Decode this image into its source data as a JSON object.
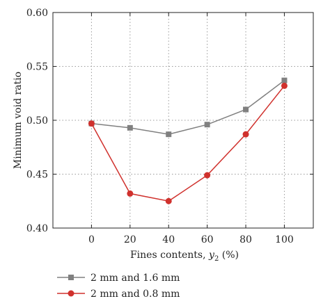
{
  "chart_data": {
    "type": "line",
    "title": "",
    "xlabel": "Fines contents, ",
    "xlabel_var": "y",
    "xlabel_sub": "2",
    "xlabel_unit": " (%)",
    "ylabel": "Minimum void ratio",
    "x": [
      0,
      20,
      40,
      60,
      80,
      100
    ],
    "xlim": [
      -20,
      115
    ],
    "ylim": [
      0.4,
      0.6
    ],
    "xticks": [
      "0",
      "20",
      "40",
      "60",
      "80",
      "100"
    ],
    "yticks": [
      "0.40",
      "0.45",
      "0.50",
      "0.55",
      "0.60"
    ],
    "grid": true,
    "legend_position": "below",
    "series": [
      {
        "name": "2 mm and 1.6 mm",
        "marker": "square",
        "color": "#808080",
        "values": [
          0.497,
          0.493,
          0.487,
          0.496,
          0.51,
          0.537
        ]
      },
      {
        "name": "2 mm and 0.8 mm",
        "marker": "circle",
        "color": "#d0312d",
        "values": [
          0.497,
          0.432,
          0.425,
          0.449,
          0.487,
          0.532
        ]
      }
    ]
  }
}
